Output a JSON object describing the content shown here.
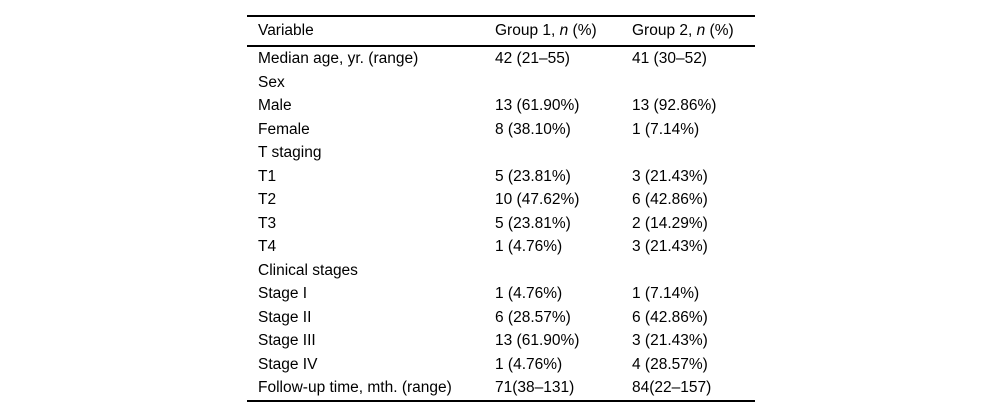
{
  "page": {
    "background_color": "#ffffff",
    "text_color": "#000000",
    "rule_color": "#000000"
  },
  "table": {
    "headers": [
      {
        "pre": "Variable",
        "italic": "",
        "post": ""
      },
      {
        "pre": "Group 1, ",
        "italic": "n",
        "post": " (%)"
      },
      {
        "pre": "Group 2, ",
        "italic": "n",
        "post": " (%)"
      }
    ],
    "rows": [
      {
        "variable": "Median age, yr. (range)",
        "group1": "42 (21–55)",
        "group2": "41 (30–52)"
      },
      {
        "variable": "Sex",
        "group1": "",
        "group2": ""
      },
      {
        "variable": "Male",
        "group1": "13 (61.90%)",
        "group2": "13 (92.86%)"
      },
      {
        "variable": "Female",
        "group1": "8 (38.10%)",
        "group2": "1 (7.14%)"
      },
      {
        "variable": "T staging",
        "group1": "",
        "group2": ""
      },
      {
        "variable": "T1",
        "group1": "5 (23.81%)",
        "group2": "3 (21.43%)"
      },
      {
        "variable": "T2",
        "group1": "10 (47.62%)",
        "group2": "6 (42.86%)"
      },
      {
        "variable": "T3",
        "group1": "5 (23.81%)",
        "group2": "2 (14.29%)"
      },
      {
        "variable": "T4",
        "group1": "1 (4.76%)",
        "group2": "3 (21.43%)"
      },
      {
        "variable": "Clinical stages",
        "group1": "",
        "group2": ""
      },
      {
        "variable": "Stage I",
        "group1": "1 (4.76%)",
        "group2": "1 (7.14%)"
      },
      {
        "variable": "Stage II",
        "group1": "6 (28.57%)",
        "group2": "6 (42.86%)"
      },
      {
        "variable": "Stage III",
        "group1": "13 (61.90%)",
        "group2": "3 (21.43%)"
      },
      {
        "variable": "Stage IV",
        "group1": "1 (4.76%)",
        "group2": "4 (28.57%)"
      },
      {
        "variable": "Follow-up time, mth. (range)",
        "group1": "71(38–131)",
        "group2": "84(22–157)"
      }
    ]
  }
}
